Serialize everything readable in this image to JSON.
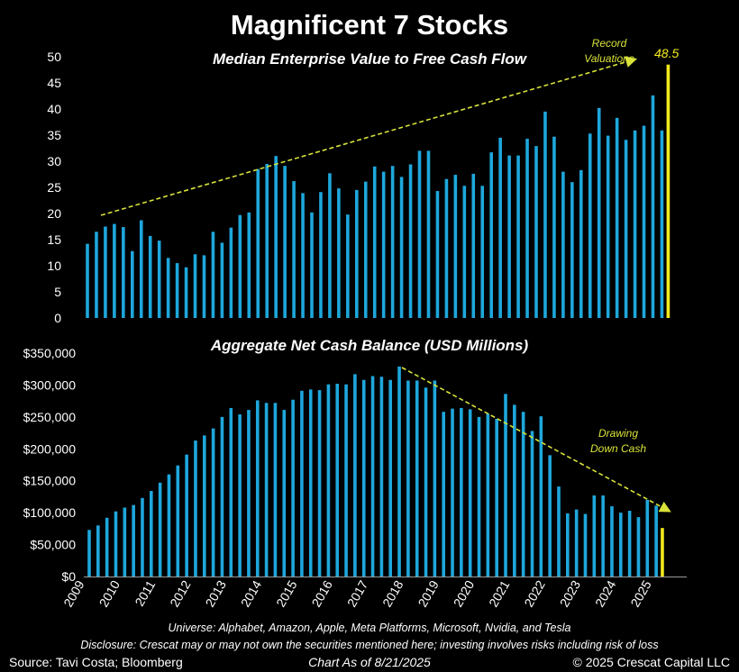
{
  "title": "Magnificent 7 Stocks",
  "chart_data": [
    {
      "type": "bar",
      "title": "Median Enterprise Value to Free Cash Flow",
      "ylim": [
        0,
        50
      ],
      "yticks": [
        "0",
        "5",
        "10",
        "15",
        "20",
        "25",
        "30",
        "35",
        "40",
        "45",
        "50"
      ],
      "values": [
        14.2,
        16.5,
        17.5,
        18.0,
        17.4,
        12.8,
        18.7,
        15.7,
        14.8,
        11.5,
        10.5,
        9.7,
        12.2,
        12.0,
        16.5,
        14.4,
        17.3,
        19.7,
        20.2,
        28.5,
        29.5,
        31.0,
        29.1,
        26.2,
        23.9,
        20.2,
        24.1,
        27.7,
        24.8,
        19.8,
        24.5,
        26.1,
        29.0,
        28.0,
        29.1,
        27.0,
        29.4,
        32.0,
        32.0,
        24.3,
        26.6,
        27.4,
        25.3,
        27.6,
        25.3,
        31.7,
        34.5,
        31.1,
        31.1,
        34.3,
        32.9,
        39.5,
        34.7,
        28.0,
        26.0,
        28.3,
        35.3,
        40.2,
        34.9,
        38.3,
        34.1,
        35.9,
        36.8,
        42.6,
        35.9
      ],
      "highlight": {
        "value": 48.5,
        "label": "48.5",
        "color": "#f2ea1d"
      },
      "annotation": [
        "Record",
        "Valuations"
      ],
      "bar_color": "#1ea7dc",
      "trend_color": "#d8e23a",
      "grid": false
    },
    {
      "type": "bar",
      "title": "Aggregate Net Cash Balance (USD Millions)",
      "ylim": [
        0,
        350000
      ],
      "yticks": [
        "$0",
        "$50,000",
        "$100,000",
        "$150,000",
        "$200,000",
        "$250,000",
        "$300,000",
        "$350,000"
      ],
      "values": [
        73000,
        80000,
        92000,
        102000,
        108000,
        112000,
        123000,
        134000,
        147000,
        160000,
        174000,
        191000,
        213000,
        221000,
        232000,
        250000,
        264000,
        254000,
        261000,
        276000,
        272000,
        272000,
        261000,
        277000,
        291000,
        293000,
        292000,
        301000,
        302000,
        301000,
        317000,
        308000,
        314000,
        313000,
        308000,
        329000,
        307000,
        307000,
        296000,
        307000,
        258000,
        263000,
        264000,
        262000,
        250000,
        255000,
        247000,
        286000,
        269000,
        258000,
        228000,
        251000,
        190000,
        141000,
        99000,
        105000,
        98000,
        127000,
        127000,
        110000,
        100000,
        103000,
        93000,
        120000,
        111000
      ],
      "highlight": {
        "value": 76000,
        "color": "#f2ea1d"
      },
      "annotation": [
        "Drawing",
        "Down Cash"
      ],
      "bar_color": "#1ea7dc",
      "trend_color": "#d8e23a",
      "xticks": [
        "2009",
        "2010",
        "2011",
        "2012",
        "2013",
        "2014",
        "2015",
        "2016",
        "2017",
        "2018",
        "2019",
        "2020",
        "2021",
        "2022",
        "2023",
        "2024",
        "2025"
      ],
      "grid": false
    }
  ],
  "footer": {
    "universe": "Universe: Alphabet, Amazon, Apple, Meta Platforms, Microsoft, Nvidia, and Tesla",
    "disclosure": "Disclosure: Crescat may or may not own the securities mentioned here; investing involves risks including risk of loss",
    "source": "Source: Tavi Costa; Bloomberg",
    "chart_date": "Chart As of 8/21/2025",
    "copyright": "© 2025 Crescat Capital LLC"
  }
}
